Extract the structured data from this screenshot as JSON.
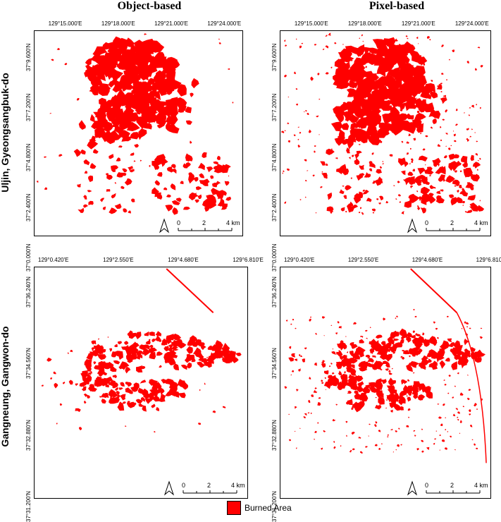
{
  "columns": [
    "Object-based",
    "Pixel-based"
  ],
  "rows": [
    "Uljin, Gyeongsangbuk-do",
    "Gangneung, Gangwon-do"
  ],
  "panels": {
    "uljin": {
      "lon_ticks": [
        "129°15.000'E",
        "129°18.000'E",
        "129°21.000'E",
        "129°24.000'E"
      ],
      "lat_ticks": [
        "37°9.600'N",
        "37°7.200'N",
        "37°4.800'N",
        "37°2.400'N",
        "37°0.000'N"
      ],
      "scale_labels": [
        "0",
        "2",
        "4 km"
      ]
    },
    "gangneung": {
      "lon_ticks": [
        "129°0.420'E",
        "129°2.550'E",
        "129°4.680'E",
        "129°6.810'E"
      ],
      "lat_ticks": [
        "37°36.240'N",
        "37°34.560'N",
        "37°32.880'N",
        "37°31.200'N"
      ],
      "scale_labels": [
        "0",
        "2",
        "4 km"
      ]
    }
  },
  "legend": {
    "label": "Burned Area",
    "color": "#ff0000"
  },
  "icons": {
    "north_arrow": "north-arrow-icon"
  }
}
